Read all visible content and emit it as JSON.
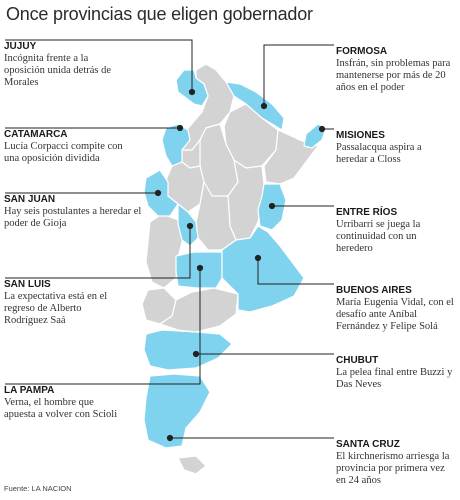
{
  "title": "Once provincias que eligen gobernador",
  "source": "Fuente: LA NACION",
  "colors": {
    "highlight": "#7fd3ef",
    "other": "#d3d3d3",
    "border": "#ffffff",
    "leader": "#222222"
  },
  "provinces": [
    {
      "id": "jujuy",
      "name": "JUJUY",
      "text": "Incógnita frente a la oposición unida detrás de Morales"
    },
    {
      "id": "catamarca",
      "name": "CATAMARCA",
      "text": "Lucía Corpacci compite con una oposición dividida"
    },
    {
      "id": "sanjuan",
      "name": "SAN JUAN",
      "text": "Hay seis postulantes a heredar el poder de Gioja"
    },
    {
      "id": "sanluis",
      "name": "SAN LUIS",
      "text": "La expectativa está en el regreso de Alberto Rodríguez Saá"
    },
    {
      "id": "lapampa",
      "name": "LA PAMPA",
      "text": "Verna, el hombre que apuesta a volver con Scioli"
    },
    {
      "id": "formosa",
      "name": "FORMOSA",
      "text": "Insfrán, sin problemas para mantenerse por más de 20 años en el poder"
    },
    {
      "id": "misiones",
      "name": "MISIONES",
      "text": "Passalacqua aspira a heredar a Closs"
    },
    {
      "id": "entrerios",
      "name": "ENTRE RÍOS",
      "text": "Urribarri se juega la continuidad con un heredero"
    },
    {
      "id": "buenosaires",
      "name": "BUENOS AIRES",
      "text": "María Eugenia Vidal, con el desafío ante Aníbal Fernández y Felipe Solá"
    },
    {
      "id": "chubut",
      "name": "CHUBUT",
      "text": "La pelea final entre Buzzi y Das Neves"
    },
    {
      "id": "santacruz",
      "name": "SANTA CRUZ",
      "text": "El kirchnerismo arriesga la provincia por primera vez en 24 años"
    }
  ]
}
